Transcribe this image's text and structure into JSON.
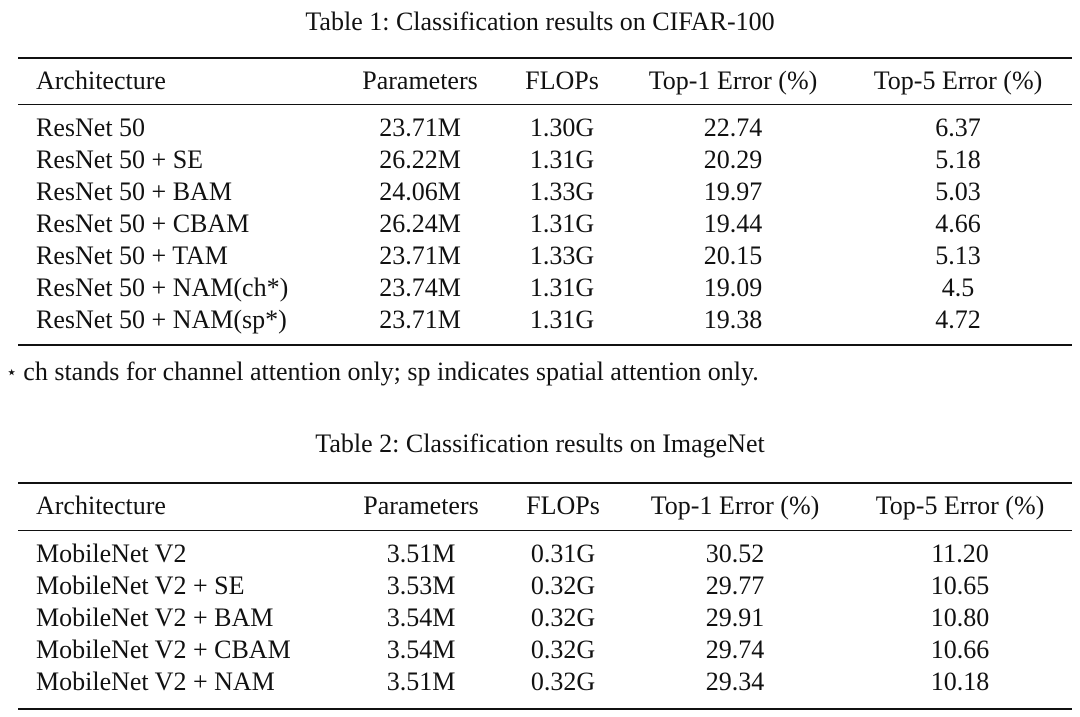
{
  "table1": {
    "caption": "Table 1: Classification results on CIFAR-100",
    "headers": [
      "Architecture",
      "Parameters",
      "FLOPs",
      "Top-1 Error (%)",
      "Top-5 Error (%)"
    ],
    "rows": [
      [
        "ResNet 50",
        "23.71M",
        "1.30G",
        "22.74",
        "6.37"
      ],
      [
        "ResNet 50 + SE",
        "26.22M",
        "1.31G",
        "20.29",
        "5.18"
      ],
      [
        "ResNet 50 + BAM",
        "24.06M",
        "1.33G",
        "19.97",
        "5.03"
      ],
      [
        "ResNet 50 + CBAM",
        "26.24M",
        "1.31G",
        "19.44",
        "4.66"
      ],
      [
        "ResNet 50 + TAM",
        "23.71M",
        "1.33G",
        "20.15",
        "5.13"
      ],
      [
        "ResNet 50 + NAM(ch*)",
        "23.74M",
        "1.31G",
        "19.09",
        "4.5"
      ],
      [
        "ResNet 50 + NAM(sp*)",
        "23.71M",
        "1.31G",
        "19.38",
        "4.72"
      ]
    ],
    "footnote_symbol": "⋆",
    "footnote": "ch stands for channel attention only; sp indicates spatial attention only."
  },
  "table2": {
    "caption": "Table 2: Classification results on ImageNet",
    "headers": [
      "Architecture",
      "Parameters",
      "FLOPs",
      "Top-1 Error (%)",
      "Top-5 Error (%)"
    ],
    "rows": [
      [
        "MobileNet V2",
        "3.51M",
        "0.31G",
        "30.52",
        "11.20"
      ],
      [
        "MobileNet V2 + SE",
        "3.53M",
        "0.32G",
        "29.77",
        "10.65"
      ],
      [
        "MobileNet V2 + BAM",
        "3.54M",
        "0.32G",
        "29.91",
        "10.80"
      ],
      [
        "MobileNet V2 + CBAM",
        "3.54M",
        "0.32G",
        "29.74",
        "10.66"
      ],
      [
        "MobileNet V2 + NAM",
        "3.51M",
        "0.32G",
        "29.34",
        "10.18"
      ]
    ]
  }
}
